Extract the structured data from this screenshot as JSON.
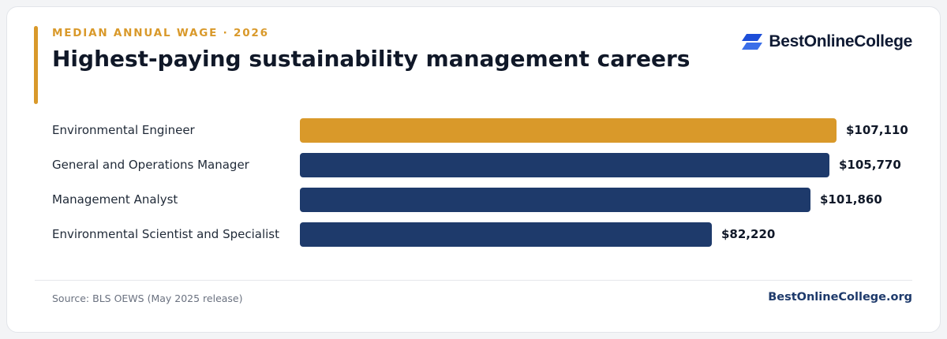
{
  "header": {
    "eyebrow": "MEDIAN ANNUAL WAGE · 2026",
    "title": "Highest-paying sustainability management careers"
  },
  "brand": {
    "name": "BestOnlineCollege",
    "icon": "chevron-stripes-logo-icon",
    "color": "#2563eb"
  },
  "footer": {
    "source": "Source: BLS OEWS (May 2025 release)",
    "site": "BestOnlineCollege.org"
  },
  "colors": {
    "highlight": "#d9992a",
    "bar": "#1e3a6b",
    "title": "#101828"
  },
  "chart_data": {
    "type": "bar",
    "orientation": "horizontal",
    "title": "Highest-paying sustainability management careers",
    "categories": [
      "Environmental Engineer",
      "General and Operations Manager",
      "Management Analyst",
      "Environmental Scientist and Specialist"
    ],
    "values": [
      107110,
      105770,
      101860,
      82220
    ],
    "value_labels": [
      "$107,110",
      "$105,770",
      "$101,860",
      "$82,220"
    ],
    "highlight_index": 0,
    "xlim": [
      0,
      107110
    ],
    "grid": false,
    "legend": "none"
  }
}
